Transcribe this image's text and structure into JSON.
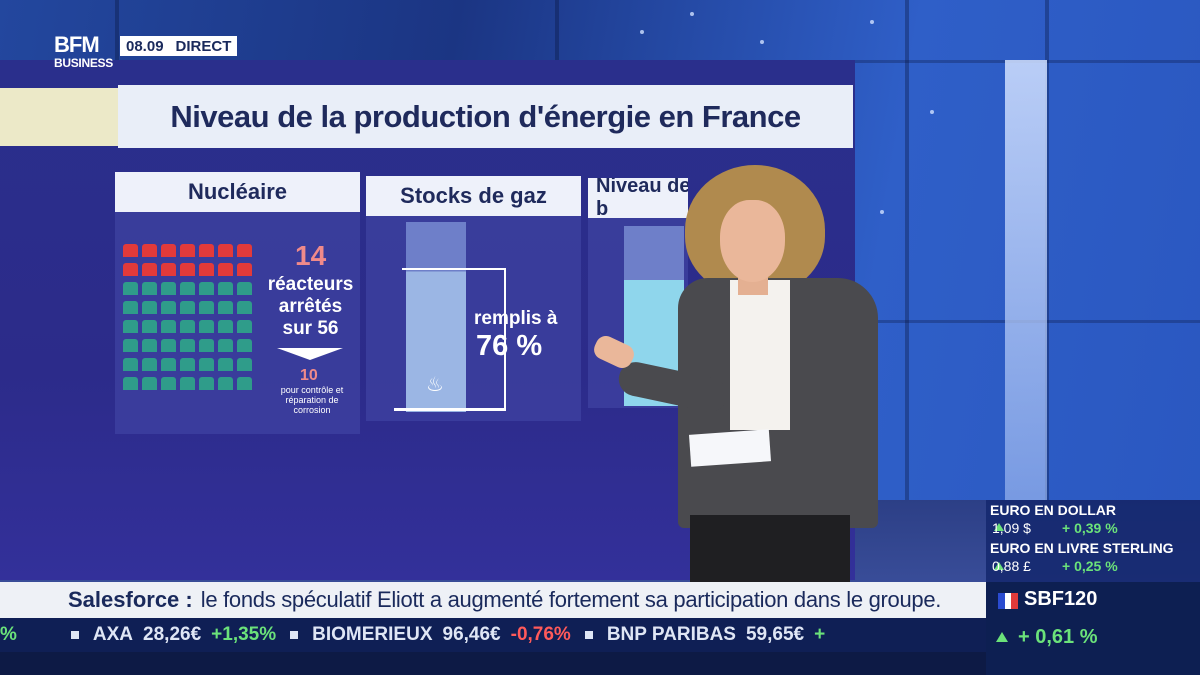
{
  "broadcast": {
    "logo_main": "BFM",
    "logo_sub": "BUSINESS",
    "time": "08.09",
    "live_label": "DIRECT"
  },
  "graphic": {
    "title": "Niveau de la production d'énergie en France",
    "cards": [
      {
        "heading": "Nucléaire",
        "big_number": "14",
        "line1": "réacteurs",
        "line2": "arrêtés",
        "line3": "sur 56",
        "sub_number": "10",
        "sub_note": "pour contrôle et réparation de corrosion"
      },
      {
        "heading": "Stocks de gaz",
        "label": "remplis à",
        "value": "76 %"
      },
      {
        "heading": "Niveau des b"
      }
    ]
  },
  "headline": {
    "brand": "Salesforce :",
    "text": "le fonds spéculatif Eliott a augmenté fortement sa participation dans le groupe."
  },
  "markets": {
    "items": [
      {
        "title": "EURO EN DOLLAR",
        "value": "1,09 $",
        "change": "+ 0,39 %"
      },
      {
        "title": "EURO EN LIVRE STERLING",
        "value": "0,88 £",
        "change": "+ 0,25 %"
      }
    ],
    "index_name": "SBF120",
    "index_change": "+ 0,61 %"
  },
  "ticker": {
    "items": [
      {
        "name": "AXA",
        "price": "28,26€",
        "change": "+1,35%",
        "dir": "up"
      },
      {
        "name": "BIOMERIEUX",
        "price": "96,46€",
        "change": "-0,76%",
        "dir": "dn"
      },
      {
        "name": "BNP PARIBAS",
        "price": "59,65€",
        "change": "+",
        "dir": "up"
      }
    ],
    "lead_fragment": "%"
  },
  "colors": {
    "accent_up": "#6be27a",
    "accent_down": "#ff5a5a",
    "number_highlight": "#f08a8a",
    "reactor_off": "#e23a3a",
    "reactor_on": "#2f9c8a"
  }
}
